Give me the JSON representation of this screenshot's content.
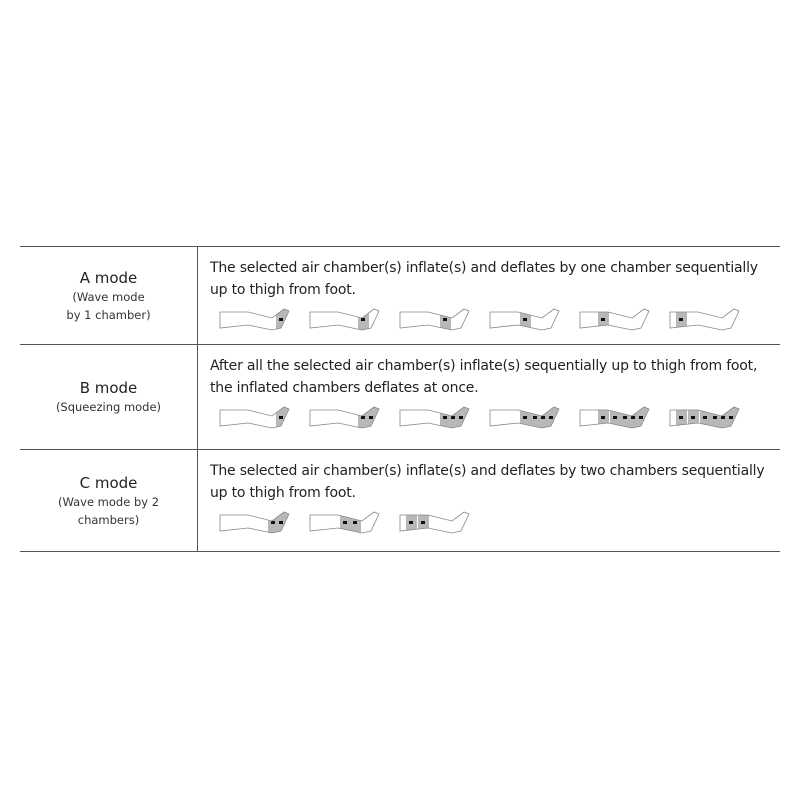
{
  "modes": [
    {
      "name": "A mode",
      "sub": [
        "(Wave mode",
        "by 1 chamber)"
      ],
      "description": [
        "The selected air chamber(s) inflate(s) and deflates by one chamber sequentially",
        "up to thigh from foot."
      ],
      "leg_states": [
        [
          0
        ],
        [
          1
        ],
        [
          2
        ],
        [
          3
        ],
        [
          4
        ],
        [
          5
        ]
      ]
    },
    {
      "name": "B mode",
      "sub": [
        "(Squeezing mode)"
      ],
      "description": [
        "After all the selected air chamber(s) inflate(s) sequentially up to thigh from foot,",
        "the inflated chambers deflates at once."
      ],
      "leg_states": [
        [
          0
        ],
        [
          0,
          1
        ],
        [
          0,
          1,
          2
        ],
        [
          0,
          1,
          2,
          3
        ],
        [
          0,
          1,
          2,
          3,
          4
        ],
        [
          0,
          1,
          2,
          3,
          4,
          5
        ]
      ]
    },
    {
      "name": "C mode",
      "sub": [
        "(Wave mode by 2",
        "chambers)"
      ],
      "description": [
        "The selected air chamber(s) inflate(s) and deflates by two chambers sequentially",
        "up to thigh from foot."
      ],
      "leg_states": [
        [
          0,
          1
        ],
        [
          2,
          3
        ],
        [
          4,
          5
        ]
      ]
    }
  ],
  "colors": {
    "border": "#555555",
    "chamber": "#b8b8b8",
    "outline": "#888888"
  }
}
